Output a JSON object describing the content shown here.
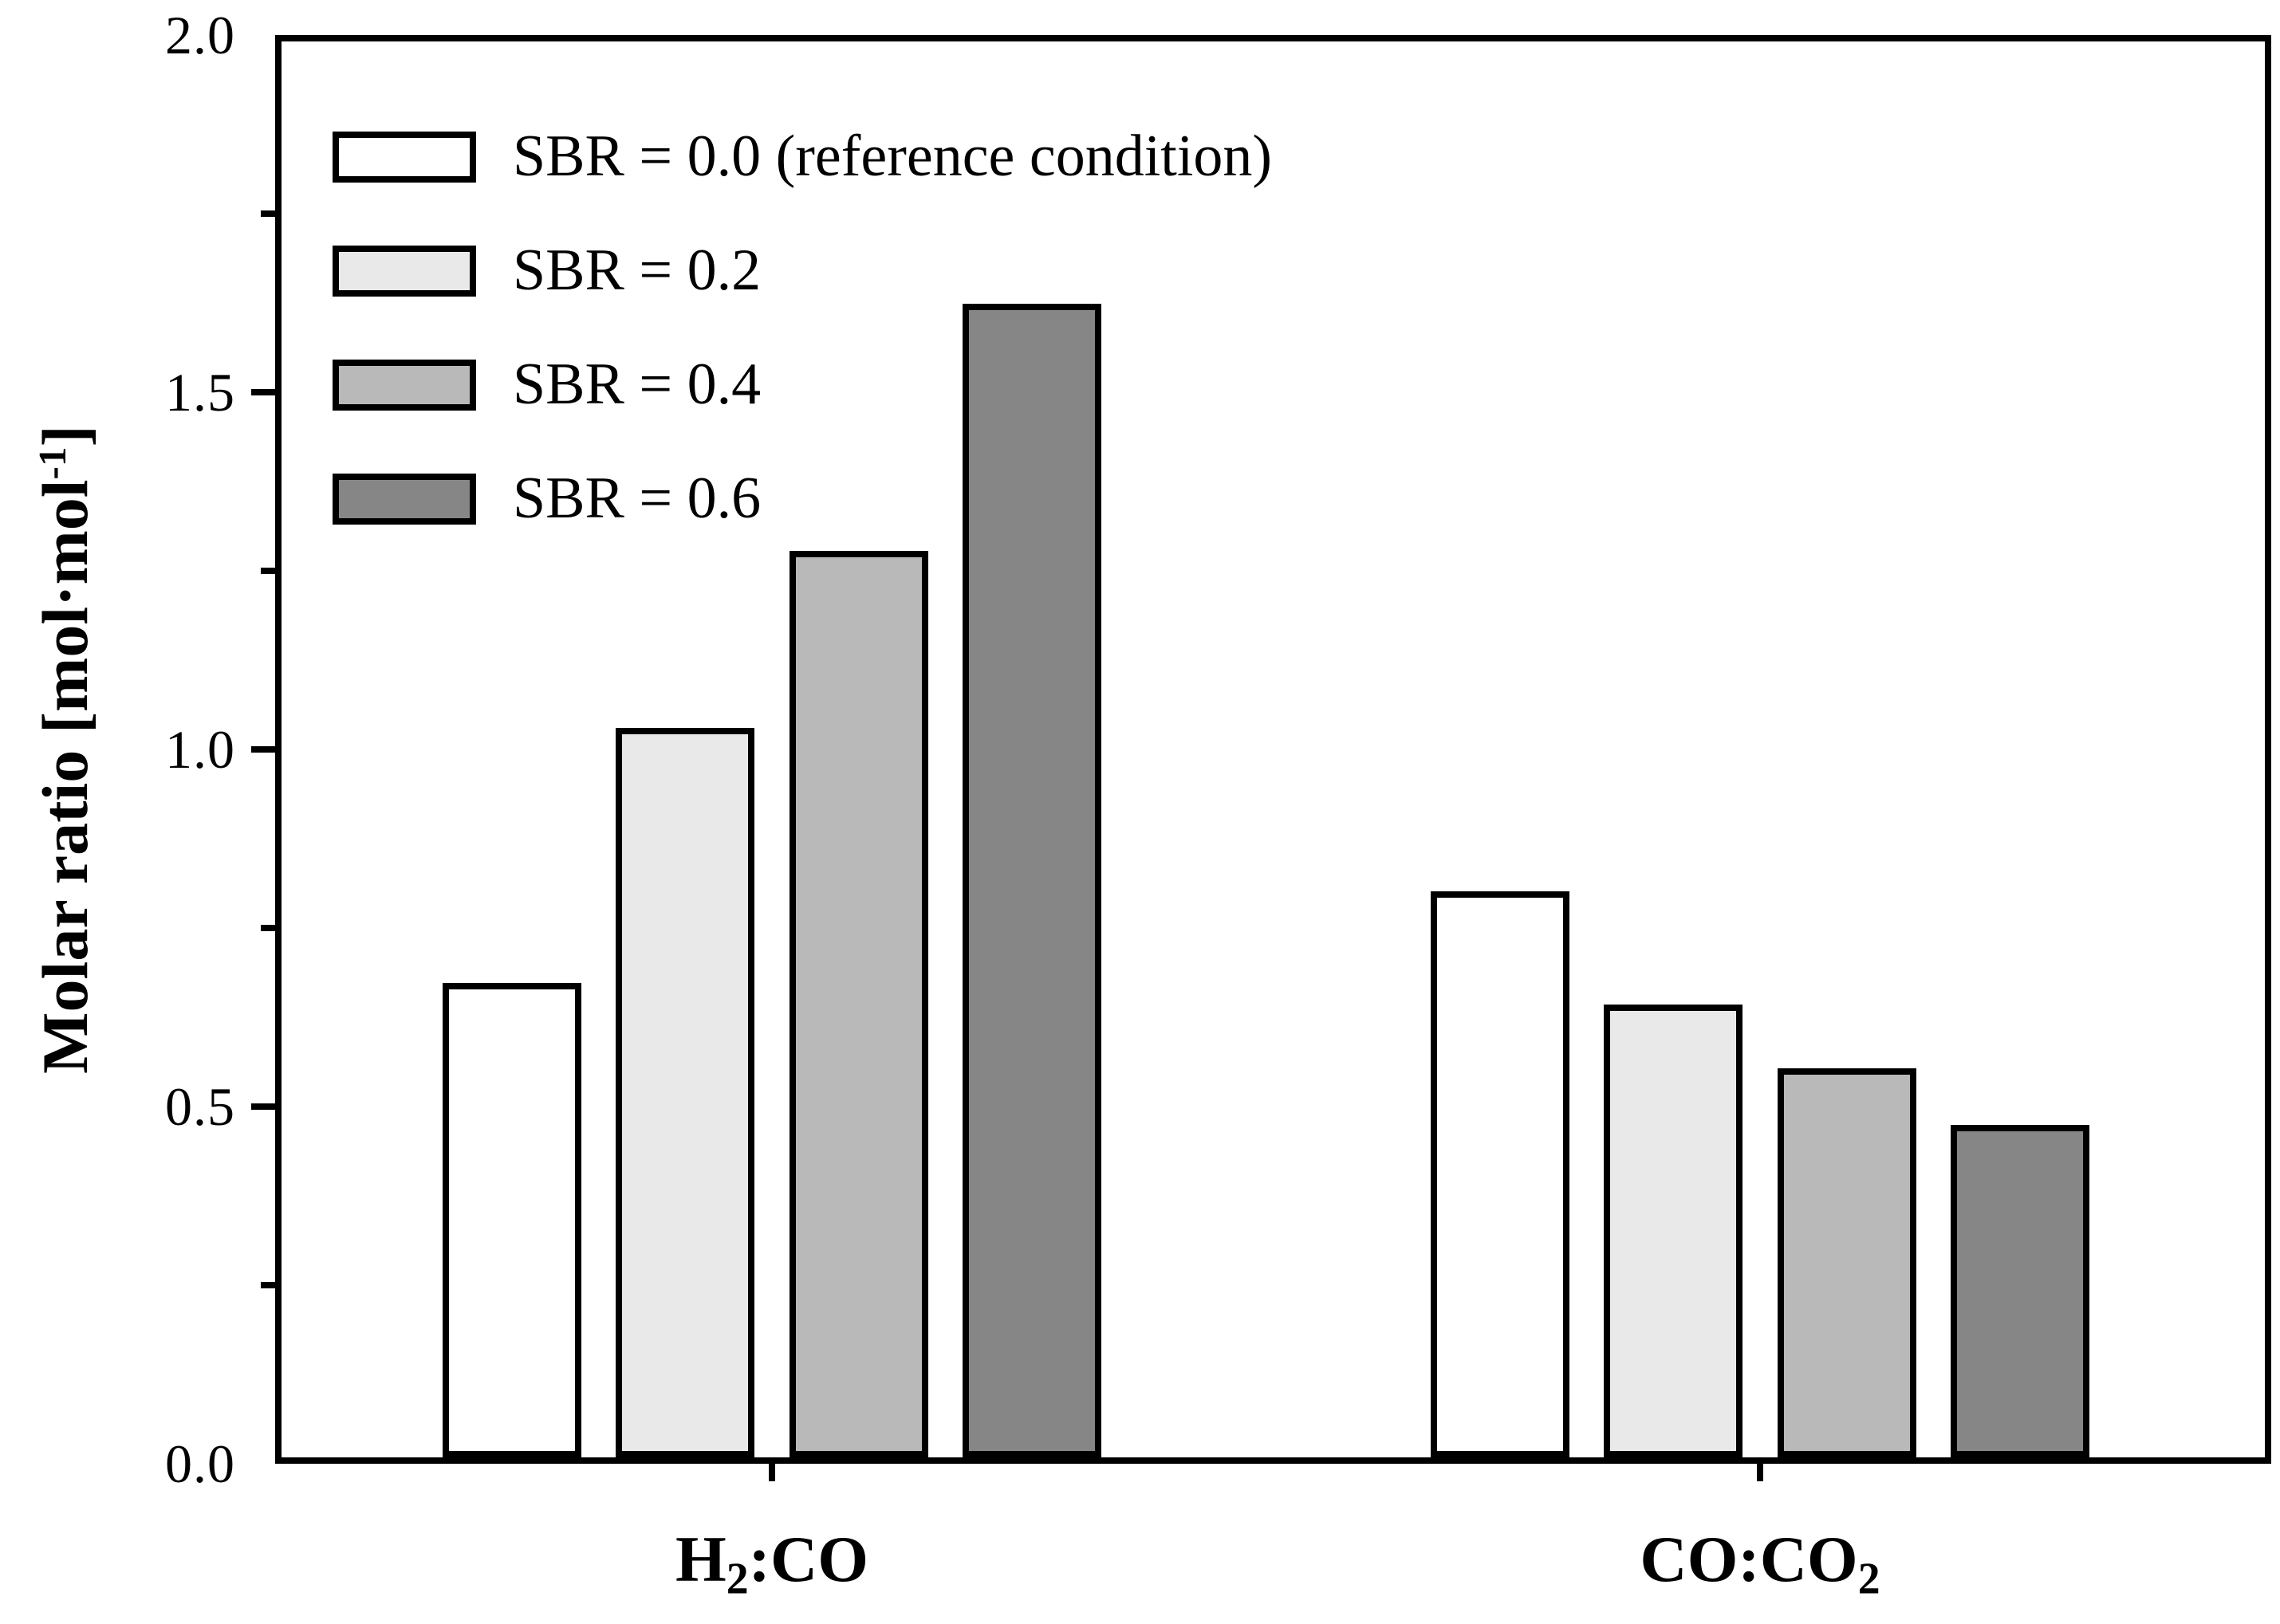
{
  "chart_data": {
    "type": "bar",
    "title": "",
    "ylabel": "Molar ratio [mol·mol⁻¹]",
    "ylabel_parts": {
      "prefix": "Molar ratio [mol·mol",
      "superscript": "-1",
      "suffix": "]"
    },
    "ylim": [
      0.0,
      2.0
    ],
    "y_major_ticks": [
      0.0,
      0.5,
      1.0,
      1.5,
      2.0
    ],
    "y_major_tick_labels": [
      "0.0",
      "0.5",
      "1.0",
      "1.5",
      "2.0"
    ],
    "y_minor_ticks": [
      0.25,
      0.75,
      1.25,
      1.75
    ],
    "grid": false,
    "legend_position": "top-left-inside",
    "categories": [
      "H₂:CO",
      "CO:CO₂"
    ],
    "category_parts": [
      {
        "prefix": "H",
        "subscript": "2",
        "suffix": ":CO"
      },
      {
        "prefix": "CO:CO",
        "subscript": "2",
        "suffix": ""
      }
    ],
    "series": [
      {
        "name": "SBR = 0.0 (reference condition)",
        "color": "#ffffff",
        "values": [
          0.67,
          0.8
        ]
      },
      {
        "name": "SBR = 0.2",
        "color": "#e9e9e9",
        "values": [
          1.03,
          0.64
        ]
      },
      {
        "name": "SBR = 0.4",
        "color": "#b9b9b9",
        "values": [
          1.28,
          0.55
        ]
      },
      {
        "name": "SBR = 0.6",
        "color": "#868686",
        "values": [
          1.63,
          0.47
        ]
      }
    ],
    "bar_outline_color": "#000000",
    "layout": {
      "group_centers_frac": [
        0.2473,
        0.7455
      ],
      "bar_width_frac": 0.0699,
      "bar_gap_frac": 0.0175
    }
  }
}
